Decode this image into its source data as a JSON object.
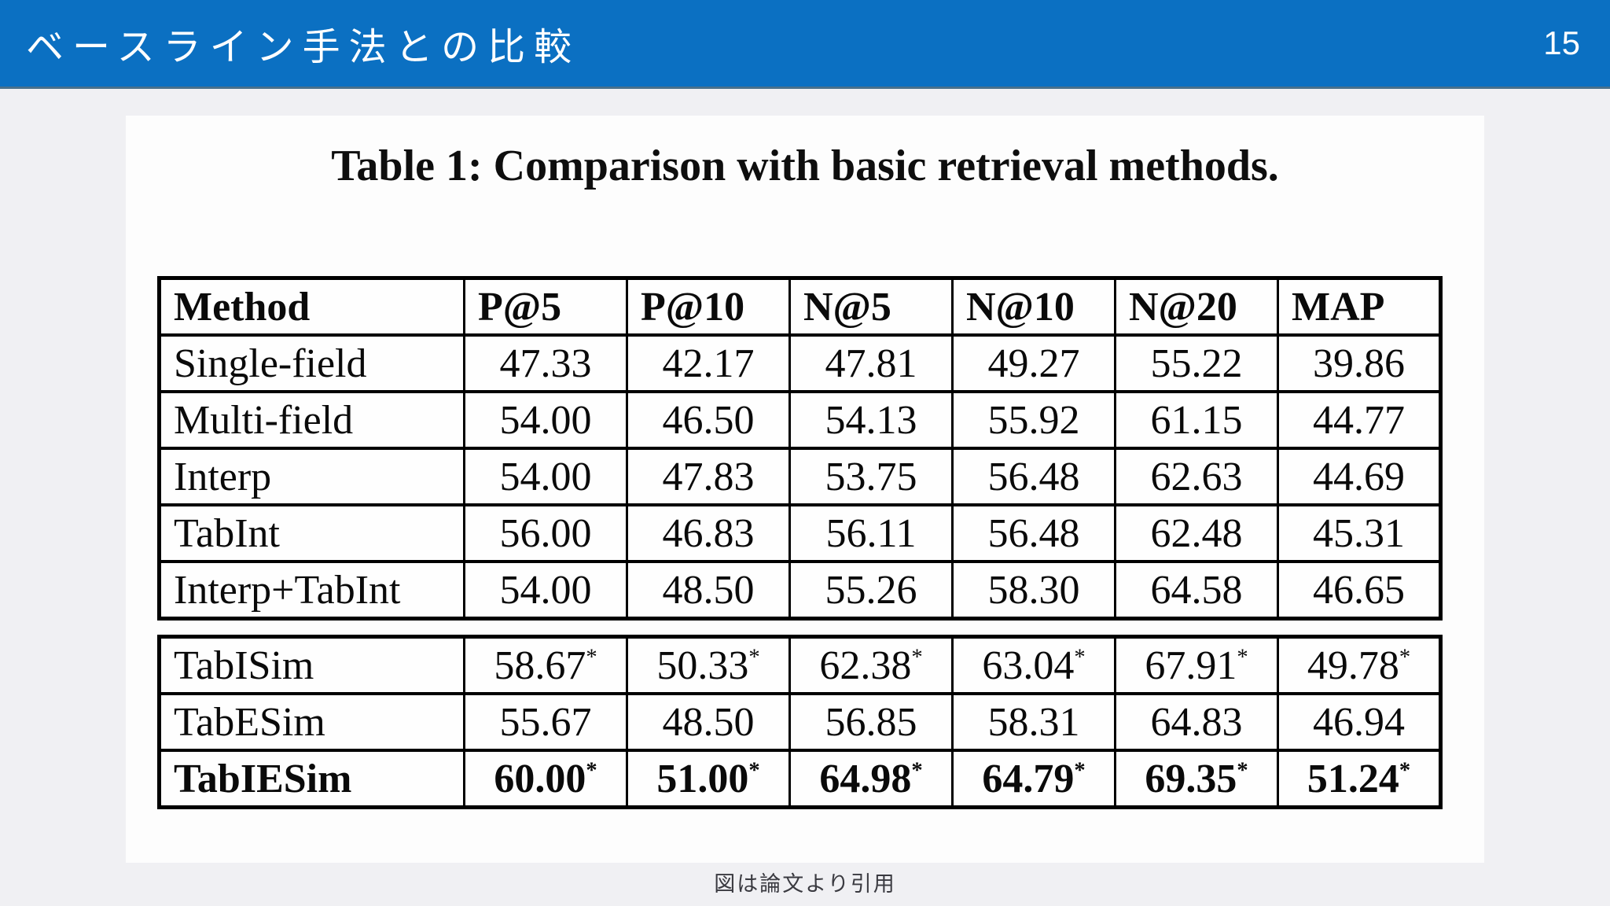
{
  "header": {
    "title": "ベースライン手法との比較",
    "page_number": "15"
  },
  "figure": {
    "title": "Table 1: Comparison with basic retrieval methods.",
    "caption": "図は論文より引用"
  },
  "colors": {
    "header_blue": "#0b70c2",
    "background_gray": "#f0f0f3",
    "panel_white": "#fdfdfd",
    "table_text": "#0a0a0a",
    "caption_text": "#3a3a40"
  },
  "chart_data": {
    "type": "table",
    "title": "Table 1: Comparison with basic retrieval methods.",
    "star_symbol": "*",
    "columns": [
      "Method",
      "P@5",
      "P@10",
      "N@5",
      "N@10",
      "N@20",
      "MAP"
    ],
    "groups": [
      {
        "name": "baseline-methods",
        "rows": [
          {
            "method": "Single-field",
            "values": [
              "47.33",
              "42.17",
              "47.81",
              "49.27",
              "55.22",
              "39.86"
            ],
            "starred": false,
            "bold": false
          },
          {
            "method": "Multi-field",
            "values": [
              "54.00",
              "46.50",
              "54.13",
              "55.92",
              "61.15",
              "44.77"
            ],
            "starred": false,
            "bold": false
          },
          {
            "method": "Interp",
            "values": [
              "54.00",
              "47.83",
              "53.75",
              "56.48",
              "62.63",
              "44.69"
            ],
            "starred": false,
            "bold": false
          },
          {
            "method": "TabInt",
            "values": [
              "56.00",
              "46.83",
              "56.11",
              "56.48",
              "62.48",
              "45.31"
            ],
            "starred": false,
            "bold": false
          },
          {
            "method": "Interp+TabInt",
            "values": [
              "54.00",
              "48.50",
              "55.26",
              "58.30",
              "64.58",
              "46.65"
            ],
            "starred": false,
            "bold": false
          }
        ]
      },
      {
        "name": "proposed-methods",
        "rows": [
          {
            "method": "TabISim",
            "values": [
              "58.67",
              "50.33",
              "62.38",
              "63.04",
              "67.91",
              "49.78"
            ],
            "starred": true,
            "bold": false
          },
          {
            "method": "TabESim",
            "values": [
              "55.67",
              "48.50",
              "56.85",
              "58.31",
              "64.83",
              "46.94"
            ],
            "starred": false,
            "bold": false
          },
          {
            "method": "TabIESim",
            "values": [
              "60.00",
              "51.00",
              "64.98",
              "64.79",
              "69.35",
              "51.24"
            ],
            "starred": true,
            "bold": true
          }
        ]
      }
    ]
  }
}
